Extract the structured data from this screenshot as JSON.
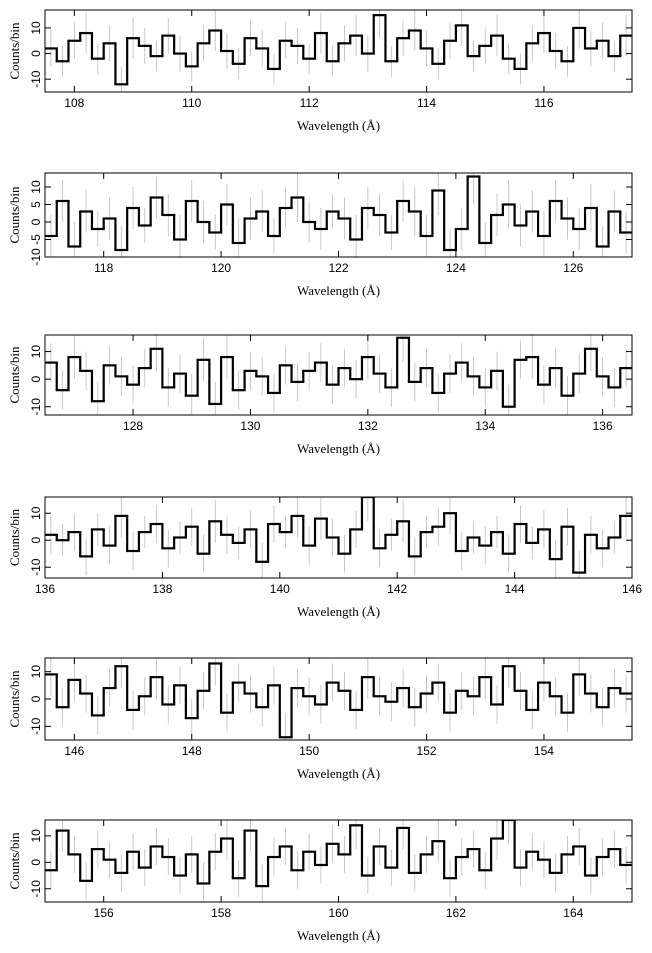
{
  "chart_data": [
    {
      "type": "histogram",
      "x_label": "Wavelength (Å)",
      "y_label": "Counts/bin",
      "color": "#000000",
      "error_color": "#bbbbbb",
      "xlim": [
        107.5,
        117.5
      ],
      "xticks": [
        108,
        110,
        112,
        114,
        116
      ],
      "ylim": [
        -15,
        17
      ],
      "yticks": [
        -10,
        0,
        10
      ],
      "bins": [
        107.5,
        107.7,
        107.9,
        108.1,
        108.3,
        108.5,
        108.7,
        108.9,
        109.1,
        109.3,
        109.5,
        109.7,
        109.9,
        110.1,
        110.3,
        110.5,
        110.7,
        110.9,
        111.1,
        111.3,
        111.5,
        111.7,
        111.9,
        112.1,
        112.3,
        112.5,
        112.7,
        112.9,
        113.1,
        113.3,
        113.5,
        113.7,
        113.9,
        114.1,
        114.3,
        114.5,
        114.7,
        114.9,
        115.1,
        115.3,
        115.5,
        115.7,
        115.9,
        116.1,
        116.3,
        116.5,
        116.7,
        116.9,
        117.1,
        117.3,
        117.5
      ],
      "values": [
        2,
        -3,
        5,
        8,
        -2,
        4,
        -12,
        6,
        3,
        -1,
        7,
        0,
        -5,
        4,
        9,
        1,
        -4,
        6,
        2,
        -6,
        5,
        3,
        -2,
        8,
        -3,
        4,
        7,
        0,
        15,
        -3,
        6,
        9,
        2,
        -4,
        5,
        11,
        -1,
        3,
        7,
        -2,
        -6,
        4,
        8,
        1,
        -3,
        10,
        2,
        5,
        -1,
        7
      ],
      "errors": [
        7,
        6,
        7,
        8,
        6,
        7,
        7,
        8,
        7,
        6,
        7,
        7,
        6,
        7,
        8,
        7,
        6,
        7,
        7,
        6,
        7,
        7,
        6,
        8,
        6,
        7,
        8,
        7,
        9,
        6,
        7,
        8,
        7,
        6,
        7,
        8,
        6,
        7,
        8,
        6,
        6,
        7,
        8,
        7,
        6,
        8,
        7,
        7,
        6,
        8
      ]
    },
    {
      "type": "histogram",
      "x_label": "Wavelength (Å)",
      "y_label": "Counts/bin",
      "color": "#000000",
      "error_color": "#bbbbbb",
      "xlim": [
        117,
        127
      ],
      "xticks": [
        118,
        120,
        122,
        124,
        126
      ],
      "ylim": [
        -10,
        14
      ],
      "yticks": [
        -10,
        -5,
        0,
        5,
        10
      ],
      "bins": [
        117,
        117.2,
        117.4,
        117.6,
        117.8,
        118,
        118.2,
        118.4,
        118.6,
        118.8,
        119,
        119.2,
        119.4,
        119.6,
        119.8,
        120,
        120.2,
        120.4,
        120.6,
        120.8,
        121,
        121.2,
        121.4,
        121.6,
        121.8,
        122,
        122.2,
        122.4,
        122.6,
        122.8,
        123,
        123.2,
        123.4,
        123.6,
        123.8,
        124,
        124.2,
        124.4,
        124.6,
        124.8,
        125,
        125.2,
        125.4,
        125.6,
        125.8,
        126,
        126.2,
        126.4,
        126.6,
        126.8,
        127
      ],
      "values": [
        -4,
        6,
        -7,
        3,
        -2,
        1,
        -8,
        4,
        -1,
        7,
        2,
        -5,
        6,
        0,
        -3,
        5,
        -6,
        1,
        3,
        -4,
        4,
        7,
        0,
        -2,
        3,
        1,
        -5,
        4,
        2,
        -3,
        6,
        3,
        -4,
        9,
        -8,
        -2,
        13,
        -6,
        2,
        5,
        -1,
        3,
        -4,
        6,
        1,
        -2,
        4,
        -7,
        3,
        -3
      ],
      "errors": [
        6,
        6,
        7,
        6,
        5,
        6,
        7,
        6,
        5,
        6,
        6,
        7,
        6,
        6,
        5,
        6,
        7,
        6,
        6,
        5,
        6,
        7,
        6,
        6,
        5,
        6,
        7,
        6,
        6,
        5,
        6,
        7,
        6,
        7,
        6,
        6,
        8,
        6,
        6,
        7,
        6,
        6,
        7,
        6,
        6,
        6,
        7,
        6,
        6,
        6
      ]
    },
    {
      "type": "histogram",
      "x_label": "Wavelength (Å)",
      "y_label": "Counts/bin",
      "color": "#000000",
      "error_color": "#bbbbbb",
      "xlim": [
        126.5,
        136.5
      ],
      "xticks": [
        128,
        130,
        132,
        134,
        136
      ],
      "ylim": [
        -13,
        16
      ],
      "yticks": [
        -10,
        0,
        10
      ],
      "bins": [
        126.5,
        126.7,
        126.9,
        127.1,
        127.3,
        127.5,
        127.7,
        127.9,
        128.1,
        128.3,
        128.5,
        128.7,
        128.9,
        129.1,
        129.3,
        129.5,
        129.7,
        129.9,
        130.1,
        130.3,
        130.5,
        130.7,
        130.9,
        131.1,
        131.3,
        131.5,
        131.7,
        131.9,
        132.1,
        132.3,
        132.5,
        132.7,
        132.9,
        133.1,
        133.3,
        133.5,
        133.7,
        133.9,
        134.1,
        134.3,
        134.5,
        134.7,
        134.9,
        135.1,
        135.3,
        135.5,
        135.7,
        135.9,
        136.1,
        136.3,
        136.5
      ],
      "values": [
        6,
        -4,
        8,
        3,
        -8,
        5,
        1,
        -2,
        4,
        11,
        -3,
        2,
        -6,
        7,
        -9,
        8,
        -4,
        3,
        1,
        -5,
        5,
        -1,
        3,
        6,
        -2,
        4,
        0,
        8,
        2,
        -3,
        15,
        -1,
        4,
        -5,
        2,
        6,
        1,
        -3,
        3,
        -10,
        7,
        8,
        -2,
        4,
        -6,
        2,
        11,
        1,
        -3,
        4
      ],
      "errors": [
        7,
        7,
        8,
        7,
        7,
        7,
        7,
        7,
        7,
        8,
        7,
        7,
        8,
        8,
        8,
        8,
        7,
        7,
        7,
        7,
        7,
        7,
        7,
        7,
        7,
        7,
        7,
        8,
        7,
        7,
        9,
        7,
        7,
        7,
        7,
        7,
        7,
        7,
        7,
        8,
        7,
        8,
        7,
        7,
        7,
        7,
        8,
        7,
        7,
        7
      ]
    },
    {
      "type": "histogram",
      "x_label": "Wavelength (Å)",
      "y_label": "Counts/bin",
      "color": "#000000",
      "error_color": "#bbbbbb",
      "xlim": [
        136,
        146
      ],
      "xticks": [
        136,
        138,
        140,
        142,
        144,
        146
      ],
      "ylim": [
        -14,
        16
      ],
      "yticks": [
        -10,
        0,
        10
      ],
      "bins": [
        136,
        136.2,
        136.4,
        136.6,
        136.8,
        137,
        137.2,
        137.4,
        137.6,
        137.8,
        138,
        138.2,
        138.4,
        138.6,
        138.8,
        139,
        139.2,
        139.4,
        139.6,
        139.8,
        140,
        140.2,
        140.4,
        140.6,
        140.8,
        141,
        141.2,
        141.4,
        141.6,
        141.8,
        142,
        142.2,
        142.4,
        142.6,
        142.8,
        143,
        143.2,
        143.4,
        143.6,
        143.8,
        144,
        144.2,
        144.4,
        144.6,
        144.8,
        145,
        145.2,
        145.4,
        145.6,
        145.8,
        146
      ],
      "values": [
        2,
        0,
        3,
        -6,
        4,
        -2,
        9,
        -4,
        3,
        6,
        -3,
        1,
        5,
        -5,
        7,
        2,
        -1,
        4,
        -8,
        6,
        3,
        9,
        -2,
        8,
        1,
        -5,
        4,
        16,
        -3,
        2,
        7,
        -6,
        3,
        5,
        10,
        -4,
        1,
        -2,
        3,
        -5,
        6,
        -1,
        4,
        -7,
        5,
        -12,
        2,
        -3,
        1,
        9
      ],
      "errors": [
        7,
        6,
        7,
        7,
        6,
        7,
        8,
        7,
        6,
        7,
        7,
        6,
        7,
        7,
        8,
        7,
        6,
        7,
        7,
        7,
        6,
        8,
        7,
        8,
        7,
        7,
        7,
        9,
        7,
        6,
        8,
        7,
        6,
        7,
        8,
        7,
        6,
        7,
        6,
        7,
        7,
        6,
        7,
        7,
        7,
        8,
        7,
        7,
        6,
        8
      ]
    },
    {
      "type": "histogram",
      "x_label": "Wavelength (Å)",
      "y_label": "Counts/bin",
      "color": "#000000",
      "error_color": "#bbbbbb",
      "xlim": [
        145.5,
        155.5
      ],
      "xticks": [
        146,
        148,
        150,
        152,
        154
      ],
      "ylim": [
        -15,
        15
      ],
      "yticks": [
        -10,
        0,
        10
      ],
      "bins": [
        145.5,
        145.7,
        145.9,
        146.1,
        146.3,
        146.5,
        146.7,
        146.9,
        147.1,
        147.3,
        147.5,
        147.7,
        147.9,
        148.1,
        148.3,
        148.5,
        148.7,
        148.9,
        149.1,
        149.3,
        149.5,
        149.7,
        149.9,
        150.1,
        150.3,
        150.5,
        150.7,
        150.9,
        151.1,
        151.3,
        151.5,
        151.7,
        151.9,
        152.1,
        152.3,
        152.5,
        152.7,
        152.9,
        153.1,
        153.3,
        153.5,
        153.7,
        153.9,
        154.1,
        154.3,
        154.5,
        154.7,
        154.9,
        155.1,
        155.3,
        155.5
      ],
      "values": [
        9,
        -3,
        7,
        2,
        -6,
        4,
        12,
        -4,
        1,
        8,
        -2,
        5,
        -7,
        3,
        13,
        -5,
        6,
        2,
        -3,
        5,
        -14,
        4,
        1,
        -2,
        6,
        3,
        -4,
        8,
        1,
        -1,
        4,
        -3,
        2,
        6,
        -5,
        3,
        1,
        8,
        -2,
        12,
        3,
        -4,
        6,
        1,
        -5,
        9,
        2,
        -3,
        4,
        2
      ],
      "errors": [
        8,
        7,
        8,
        7,
        7,
        7,
        8,
        7,
        7,
        8,
        7,
        7,
        7,
        7,
        8,
        7,
        7,
        7,
        7,
        7,
        9,
        7,
        7,
        7,
        7,
        7,
        7,
        8,
        7,
        7,
        7,
        7,
        7,
        7,
        7,
        7,
        7,
        8,
        7,
        8,
        7,
        7,
        7,
        7,
        7,
        8,
        7,
        7,
        7,
        7
      ]
    },
    {
      "type": "histogram",
      "x_label": "Wavelength (Å)",
      "y_label": "Counts/bin",
      "color": "#000000",
      "error_color": "#bbbbbb",
      "xlim": [
        155,
        165
      ],
      "xticks": [
        156,
        158,
        160,
        162,
        164
      ],
      "ylim": [
        -15,
        16
      ],
      "yticks": [
        -10,
        0,
        10
      ],
      "bins": [
        155,
        155.2,
        155.4,
        155.6,
        155.8,
        156,
        156.2,
        156.4,
        156.6,
        156.8,
        157,
        157.2,
        157.4,
        157.6,
        157.8,
        158,
        158.2,
        158.4,
        158.6,
        158.8,
        159,
        159.2,
        159.4,
        159.6,
        159.8,
        160,
        160.2,
        160.4,
        160.6,
        160.8,
        161,
        161.2,
        161.4,
        161.6,
        161.8,
        162,
        162.2,
        162.4,
        162.6,
        162.8,
        163,
        163.2,
        163.4,
        163.6,
        163.8,
        164,
        164.2,
        164.4,
        164.6,
        164.8,
        165
      ],
      "values": [
        -3,
        12,
        3,
        -7,
        5,
        1,
        -4,
        4,
        -2,
        6,
        2,
        -5,
        3,
        -8,
        4,
        9,
        -6,
        12,
        -9,
        2,
        6,
        -3,
        4,
        -1,
        7,
        3,
        14,
        -5,
        6,
        -2,
        13,
        -4,
        3,
        8,
        -6,
        2,
        5,
        -3,
        9,
        16,
        -2,
        4,
        1,
        -4,
        3,
        6,
        -5,
        2,
        5,
        -1
      ],
      "errors": [
        7,
        8,
        7,
        7,
        7,
        7,
        7,
        7,
        7,
        7,
        7,
        7,
        7,
        8,
        7,
        8,
        7,
        8,
        8,
        7,
        7,
        7,
        7,
        7,
        7,
        7,
        9,
        7,
        7,
        7,
        8,
        7,
        7,
        8,
        7,
        7,
        7,
        7,
        8,
        9,
        7,
        7,
        7,
        7,
        7,
        7,
        7,
        7,
        7,
        7
      ]
    }
  ]
}
